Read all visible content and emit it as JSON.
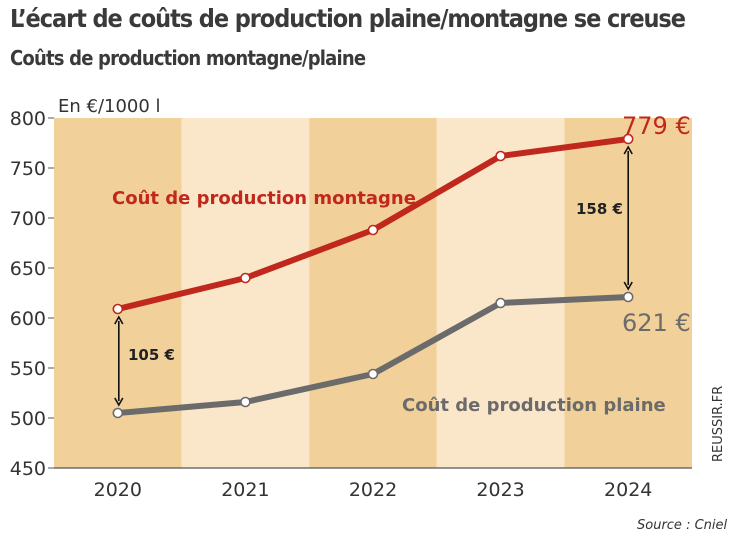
{
  "title": "L’écart de coûts de production plaine/montagne se creuse",
  "subtitle": "Coûts de production montagne/plaine",
  "unit_label": "En €/1000 l",
  "credit": "REUSSIR.FR",
  "source": "Source : Cniel",
  "colors": {
    "montagne": "#c0281d",
    "plaine": "#6b6b6b",
    "band_dark": "#f2d09a",
    "band_light": "#fae6c9"
  },
  "chart_data": {
    "type": "line",
    "categories": [
      "2020",
      "2021",
      "2022",
      "2023",
      "2024"
    ],
    "ylim": [
      450,
      800
    ],
    "yticks": [
      450,
      500,
      550,
      600,
      650,
      700,
      750,
      800
    ],
    "series": [
      {
        "name": "Coût de production montagne",
        "values": [
          609,
          640,
          688,
          762,
          779
        ]
      },
      {
        "name": "Coût de production plaine",
        "values": [
          505,
          516,
          544,
          615,
          621
        ]
      }
    ],
    "annotations": {
      "last_montagne": "779 €",
      "last_plaine": "621 €",
      "gap_2020": "105 €",
      "gap_2024": "158 €"
    }
  }
}
